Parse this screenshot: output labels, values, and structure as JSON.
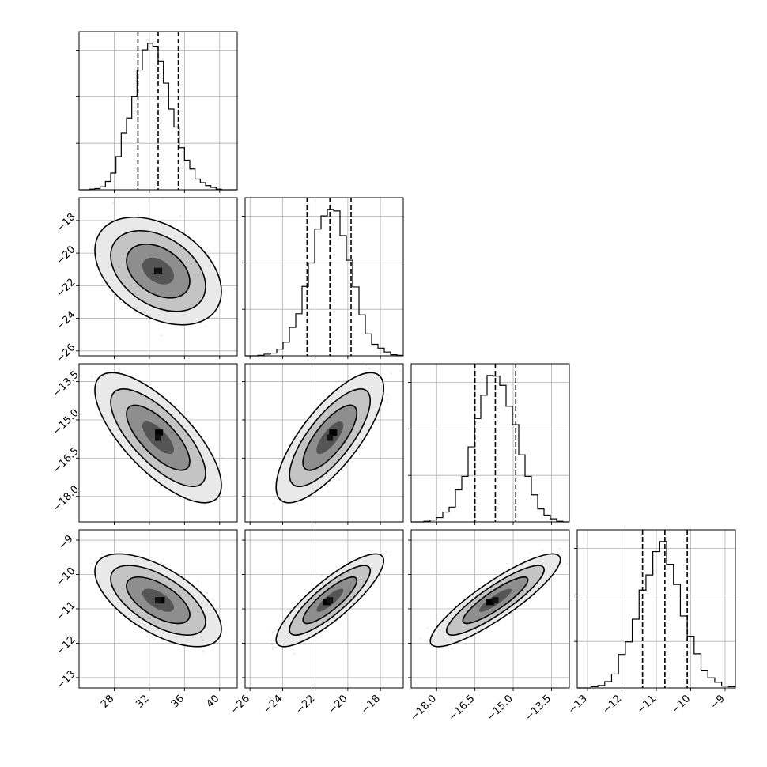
{
  "chart_data": {
    "type": "corner",
    "parameters": [
      {
        "range": [
          24,
          42
        ],
        "ticks": [
          28,
          32,
          36,
          40
        ],
        "tick_labels": [
          "28",
          "32",
          "36",
          "40"
        ]
      },
      {
        "range": [
          -26.3,
          -16.6
        ],
        "ticks": [
          -26,
          -24,
          -22,
          -20,
          -18
        ],
        "tick_labels": [
          "−26",
          "−24",
          "−22",
          "−20",
          "−18"
        ]
      },
      {
        "range": [
          -19.0,
          -12.8
        ],
        "ticks": [
          -18.0,
          -16.5,
          -15.0,
          -13.5
        ],
        "tick_labels": [
          "−18.0",
          "−16.5",
          "−15.0",
          "−13.5"
        ]
      },
      {
        "range": [
          -13.3,
          -8.7
        ],
        "ticks": [
          -13,
          -12,
          -11,
          -10,
          -9
        ],
        "tick_labels": [
          "−13",
          "−12",
          "−11",
          "−10",
          "−9"
        ]
      }
    ],
    "quantiles": [
      [
        30.7,
        33.0,
        35.3
      ],
      [
        -22.5,
        -21.1,
        -19.8
      ],
      [
        -16.5,
        -15.7,
        -14.9
      ],
      [
        -11.4,
        -10.75,
        -10.1
      ]
    ],
    "histograms": [
      {
        "edges_range": [
          24,
          42
        ],
        "counts": [
          0,
          0,
          1,
          2,
          5,
          14,
          28,
          56,
          96,
          121,
          157,
          202,
          236,
          247,
          242,
          217,
          180,
          136,
          106,
          71,
          50,
          35,
          18,
          12,
          7,
          4,
          1,
          0,
          0,
          0
        ]
      },
      {
        "edges_range": [
          -26.3,
          -16.6
        ],
        "counts": [
          0,
          0,
          1,
          3,
          5,
          12,
          25,
          52,
          77,
          127,
          170,
          232,
          256,
          268,
          265,
          220,
          175,
          126,
          75,
          40,
          21,
          14,
          7,
          2,
          1
        ]
      },
      {
        "edges_range": [
          -19.0,
          -12.8
        ],
        "counts": [
          0,
          0,
          1,
          3,
          7,
          16,
          24,
          52,
          74,
          122,
          168,
          206,
          238,
          237,
          222,
          188,
          158,
          109,
          74,
          44,
          21,
          11,
          5,
          1,
          0
        ]
      },
      {
        "edges_range": [
          -13.3,
          -8.7
        ],
        "counts": [
          0,
          0,
          2,
          4,
          10,
          22,
          53,
          73,
          109,
          155,
          179,
          216,
          232,
          196,
          164,
          114,
          82,
          54,
          28,
          16,
          9,
          3,
          2
        ]
      }
    ],
    "pairs": [
      {
        "x": 0,
        "y": 1,
        "mean": [
          33.0,
          -21.1
        ],
        "sd": [
          2.4,
          1.1
        ],
        "corr": -0.38,
        "peak": [
          33.0,
          -21.1
        ]
      },
      {
        "x": 0,
        "y": 2,
        "mean": [
          33.0,
          -15.7
        ],
        "sd": [
          2.4,
          0.85
        ],
        "corr": -0.73,
        "peak": [
          33.1,
          -15.5
        ]
      },
      {
        "x": 1,
        "y": 2,
        "mean": [
          -21.1,
          -15.7
        ],
        "sd": [
          1.1,
          0.85
        ],
        "corr": 0.76,
        "peak": [
          -20.9,
          -15.5
        ]
      },
      {
        "x": 0,
        "y": 3,
        "mean": [
          33.0,
          -10.75
        ],
        "sd": [
          2.4,
          0.45
        ],
        "corr": -0.62,
        "peak": [
          33.3,
          -10.75
        ]
      },
      {
        "x": 1,
        "y": 3,
        "mean": [
          -21.1,
          -10.75
        ],
        "sd": [
          1.1,
          0.45
        ],
        "corr": 0.85,
        "peak": [
          -21.3,
          -10.8
        ]
      },
      {
        "x": 2,
        "y": 3,
        "mean": [
          -15.7,
          -10.75
        ],
        "sd": [
          0.85,
          0.45
        ],
        "corr": 0.88,
        "peak": [
          -15.9,
          -10.8
        ]
      }
    ],
    "contour_levels_sigma": [
      0.5,
      1.0,
      1.5,
      2.0
    ],
    "grid": true
  }
}
